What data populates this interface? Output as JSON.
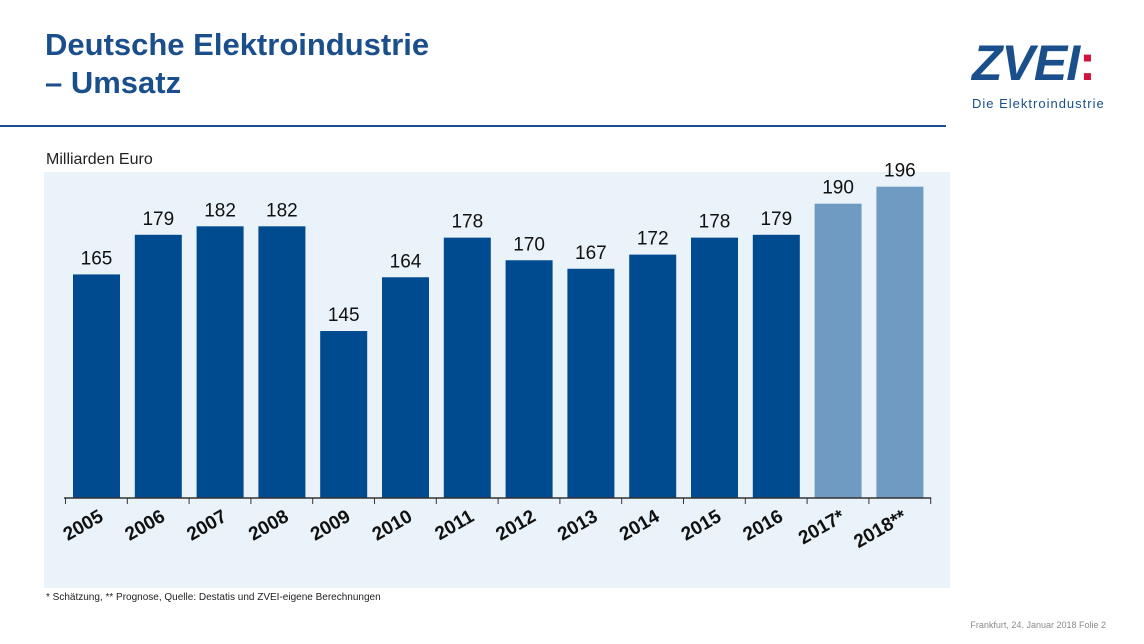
{
  "header": {
    "title_line1": "Deutsche Elektroindustrie",
    "title_line2": "– Umsatz"
  },
  "logo": {
    "mark": "ZVEI",
    "mark_colon": ":",
    "tagline": "Die Elektroindustrie"
  },
  "colors": {
    "primary": "#1a4f8c",
    "bar_actual": "#004a8f",
    "bar_forecast": "#6f9bc3",
    "chart_bg": "#e9f3f9",
    "accent": "#d2143c"
  },
  "chart_data": {
    "type": "bar",
    "title": "",
    "ylabel": "Milliarden Euro",
    "xlabel": "",
    "categories": [
      "2005",
      "2006",
      "2007",
      "2008",
      "2009",
      "2010",
      "2011",
      "2012",
      "2013",
      "2014",
      "2015",
      "2016",
      "2017*",
      "2018**"
    ],
    "values": [
      165,
      179,
      182,
      182,
      145,
      164,
      178,
      170,
      167,
      172,
      178,
      179,
      190,
      196
    ],
    "forecast": [
      false,
      false,
      false,
      false,
      false,
      false,
      false,
      false,
      false,
      false,
      false,
      false,
      true,
      true
    ],
    "ylim": [
      86,
      200
    ],
    "grid": false,
    "legend": "none"
  },
  "footnote": "* Schätzung, ** Prognose, Quelle: Destatis und ZVEI-eigene Berechnungen",
  "footer": "Frankfurt,  24.  Januar 2018  Folie 2"
}
